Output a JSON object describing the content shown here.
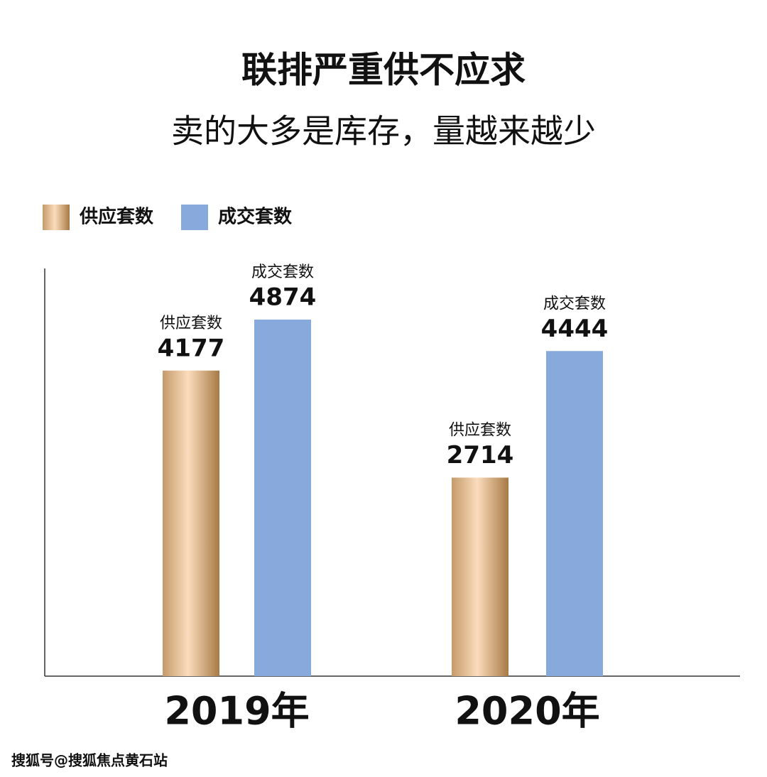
{
  "chart_data": {
    "type": "bar",
    "title": "联排严重供不应求",
    "subtitle": "卖的大多是库存，量越来越少",
    "categories": [
      "2019年",
      "2020年"
    ],
    "series": [
      {
        "name": "供应套数",
        "color": "#c49a6a",
        "values": [
          4177,
          2714
        ]
      },
      {
        "name": "成交套数",
        "color": "#87a9dc",
        "values": [
          4874,
          4444
        ]
      }
    ],
    "ylim": [
      0,
      5000
    ],
    "watermark": "搜狐号@搜狐焦点黄石站"
  }
}
